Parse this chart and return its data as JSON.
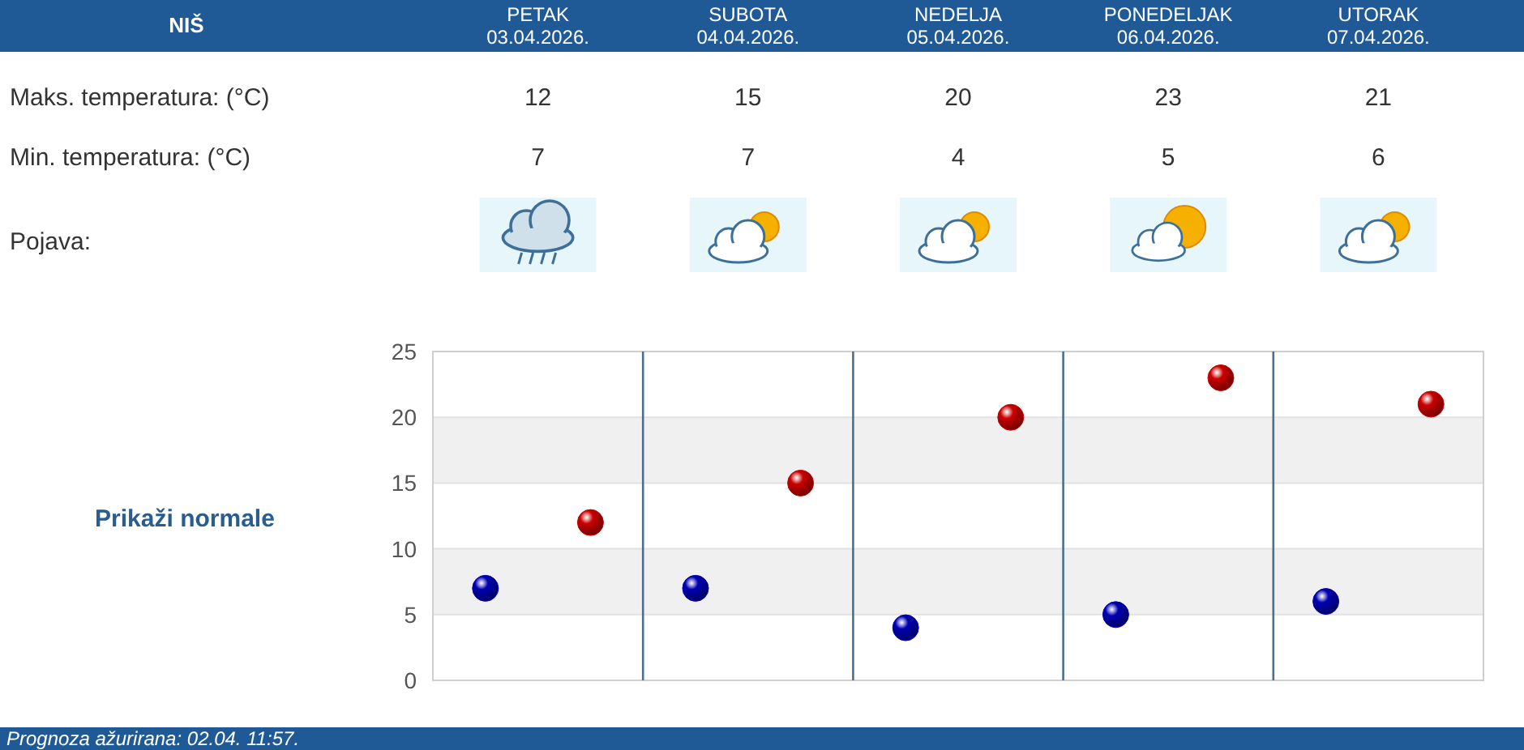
{
  "chart_data": {
    "type": "scatter",
    "categories": [
      null,
      null,
      null,
      null,
      null
    ],
    "series": [
      {
        "color": "#cc0000",
        "values": [
          12,
          15,
          20,
          23,
          21
        ]
      },
      {
        "color": "#0000b4",
        "values": [
          7,
          7,
          4,
          5,
          6
        ]
      }
    ],
    "ylim": [
      0,
      25
    ],
    "yticks": [
      0,
      5,
      10,
      15,
      20,
      25
    ],
    "grid": "y",
    "marker": "circle",
    "data_labels": true,
    "annotations": [
      "NIŠ",
      "PETAK\n03.04.2026.",
      "SUBOTA\n04.04.2026.",
      "NEDELJA\n05.04.2026.",
      "PONEDELJAK\n06.04.2026.",
      "UTORAK\n07.04.2026.",
      "Maks. temperatura: (°C)",
      "Min. temperatura: (°C)",
      "Pojava:",
      "Prikaži normale",
      "Prognoza ažurirana:  02.04. 11:57."
    ]
  }
}
